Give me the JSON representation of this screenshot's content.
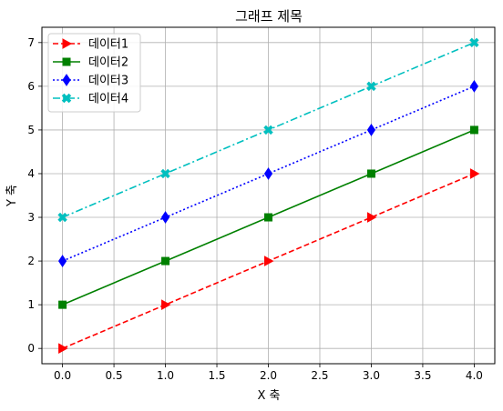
{
  "chart_data": {
    "type": "line",
    "title": "그래프 제목",
    "xlabel": "X 축",
    "ylabel": "Y 축",
    "xlim": [
      -0.2,
      4.2
    ],
    "ylim": [
      -0.35,
      7.35
    ],
    "xticks": [
      0.0,
      0.5,
      1.0,
      1.5,
      2.0,
      2.5,
      3.0,
      3.5,
      4.0
    ],
    "xtick_labels": [
      "0.0",
      "0.5",
      "1.0",
      "1.5",
      "2.0",
      "2.5",
      "3.0",
      "3.5",
      "4.0"
    ],
    "yticks": [
      0,
      1,
      2,
      3,
      4,
      5,
      6,
      7
    ],
    "ytick_labels": [
      "0",
      "1",
      "2",
      "3",
      "4",
      "5",
      "6",
      "7"
    ],
    "grid": true,
    "legend_position": "top-left",
    "x": [
      0,
      1,
      2,
      3,
      4
    ],
    "series": [
      {
        "name": "데이터1",
        "values": [
          0,
          1,
          2,
          3,
          4
        ],
        "color": "#ff0000",
        "line_style": "dashed",
        "marker": "triangle-right"
      },
      {
        "name": "데이터2",
        "values": [
          1,
          2,
          3,
          4,
          5
        ],
        "color": "#008000",
        "line_style": "solid",
        "marker": "square"
      },
      {
        "name": "데이터3",
        "values": [
          2,
          3,
          4,
          5,
          6
        ],
        "color": "#0000ff",
        "line_style": "dotted",
        "marker": "diamond"
      },
      {
        "name": "데이터4",
        "values": [
          3,
          4,
          5,
          6,
          7
        ],
        "color": "#00bfbf",
        "line_style": "dashdot",
        "marker": "x-filled"
      }
    ]
  }
}
